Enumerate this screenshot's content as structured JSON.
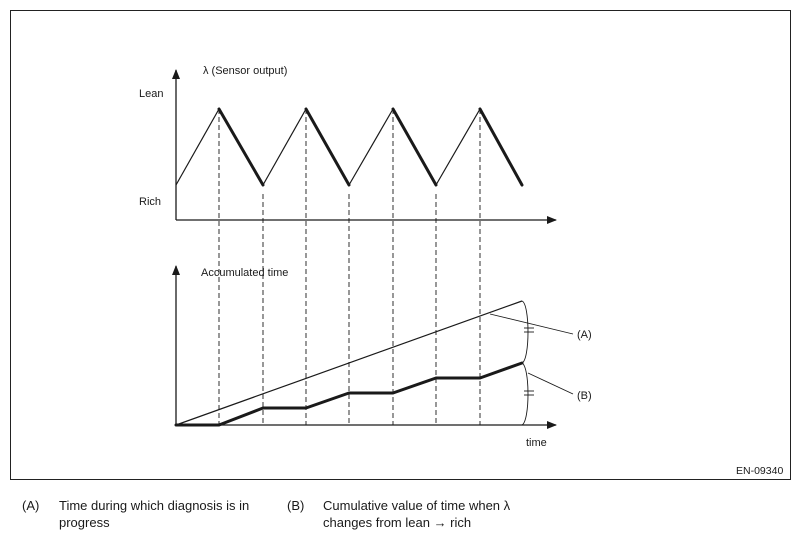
{
  "top_graph": {
    "y_title": "λ  (Sensor output)",
    "y_label_high": "Lean",
    "y_label_low": "Rich"
  },
  "bottom_graph": {
    "y_title": "Accumulated time",
    "x_title": "time",
    "callout_a": "(A)",
    "callout_b": "(B)"
  },
  "figure_code": "EN-09340",
  "legend": [
    {
      "key": "(A)",
      "text_line1": "Time during which diagnosis is in",
      "text_line2": "progress"
    },
    {
      "key": "(B)",
      "text_line1": "Cumulative value of time when λ",
      "text_line2": "changes from lean → rich"
    }
  ]
}
